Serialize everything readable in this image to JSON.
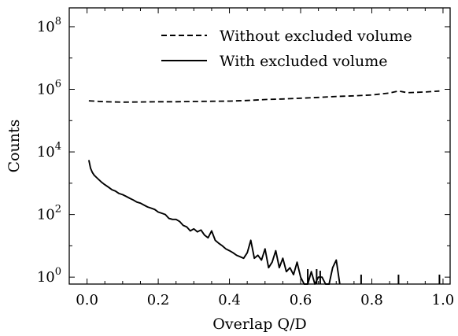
{
  "chart_data": {
    "type": "line",
    "xlabel": "Overlap Q/D",
    "ylabel": "Counts",
    "y_scale": "log",
    "xlim": [
      -0.05,
      1.02
    ],
    "ylim": [
      0.6,
      400000000
    ],
    "x_ticks": [
      {
        "value": 0.0,
        "label": "0.0"
      },
      {
        "value": 0.2,
        "label": "0.2"
      },
      {
        "value": 0.4,
        "label": "0.4"
      },
      {
        "value": 0.6,
        "label": "0.6"
      },
      {
        "value": 0.8,
        "label": "0.8"
      },
      {
        "value": 1.0,
        "label": "1.0"
      }
    ],
    "y_ticks": [
      {
        "value": 1,
        "base": "10",
        "exp": "0"
      },
      {
        "value": 100,
        "base": "10",
        "exp": "2"
      },
      {
        "value": 10000,
        "base": "10",
        "exp": "4"
      },
      {
        "value": 1000000,
        "base": "10",
        "exp": "6"
      },
      {
        "value": 100000000,
        "base": "10",
        "exp": "8"
      }
    ],
    "legend_position": "top-right",
    "series": [
      {
        "name": "Without excluded volume",
        "style": "dashed",
        "x": [
          0.005,
          0.05,
          0.1,
          0.15,
          0.2,
          0.25,
          0.3,
          0.35,
          0.4,
          0.45,
          0.5,
          0.55,
          0.6,
          0.65,
          0.7,
          0.75,
          0.8,
          0.85,
          0.875,
          0.9,
          0.95,
          0.99
        ],
        "y": [
          430000,
          400000,
          390000,
          395000,
          400000,
          400000,
          410000,
          415000,
          420000,
          440000,
          470000,
          490000,
          520000,
          550000,
          590000,
          620000,
          660000,
          760000,
          880000,
          780000,
          820000,
          880000
        ]
      },
      {
        "name": "With excluded volume",
        "style": "solid",
        "x": [
          0.005,
          0.01,
          0.015,
          0.02,
          0.03,
          0.04,
          0.05,
          0.06,
          0.07,
          0.08,
          0.09,
          0.1,
          0.11,
          0.12,
          0.13,
          0.14,
          0.15,
          0.16,
          0.17,
          0.18,
          0.19,
          0.2,
          0.21,
          0.22,
          0.23,
          0.24,
          0.25,
          0.26,
          0.27,
          0.28,
          0.29,
          0.3,
          0.31,
          0.32,
          0.33,
          0.34,
          0.35,
          0.36,
          0.37,
          0.38,
          0.39,
          0.4,
          0.41,
          0.42,
          0.43,
          0.44,
          0.45,
          0.46,
          0.47,
          0.48,
          0.49,
          0.5,
          0.51,
          0.52,
          0.53,
          0.54,
          0.55,
          0.56,
          0.57,
          0.58,
          0.59,
          0.6,
          0.61,
          0.62,
          0.63,
          0.64,
          0.65,
          0.66,
          0.67,
          0.68,
          0.69,
          0.7,
          0.71
        ],
        "y": [
          5500,
          3000,
          2200,
          1800,
          1400,
          1100,
          900,
          750,
          620,
          560,
          470,
          430,
          380,
          330,
          290,
          250,
          230,
          200,
          175,
          160,
          145,
          120,
          110,
          100,
          75,
          70,
          70,
          60,
          45,
          40,
          30,
          35,
          28,
          32,
          22,
          18,
          30,
          15,
          12,
          10,
          8,
          7,
          6,
          5,
          4.5,
          4,
          6,
          15,
          4,
          5,
          3.5,
          8,
          2,
          3,
          7,
          2,
          4,
          1.5,
          2,
          1.2,
          3,
          1,
          0.6,
          0.6,
          1.5,
          0.6,
          1,
          1,
          0.6,
          0.6,
          2,
          3.5,
          0.6
        ]
      }
    ],
    "spikes": [
      {
        "x": 0.62,
        "y": 1.8
      },
      {
        "x": 0.645,
        "y": 1.8
      },
      {
        "x": 0.655,
        "y": 1.6
      },
      {
        "x": 0.77,
        "y": 1.2
      },
      {
        "x": 0.875,
        "y": 1.2
      },
      {
        "x": 0.99,
        "y": 1.2
      }
    ]
  }
}
